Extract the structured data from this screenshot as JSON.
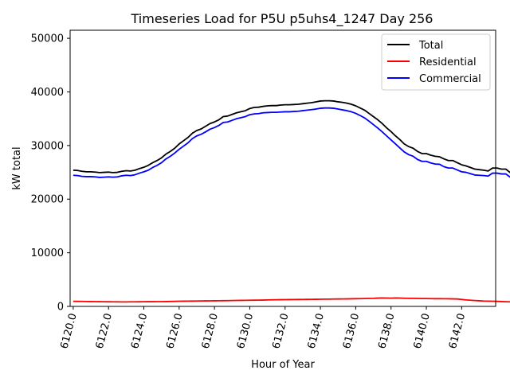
{
  "chart_data": {
    "type": "line",
    "title": "Timeseries Load for P5U p5uhs4_1247  Day 256",
    "xlabel": "Hour of Year",
    "ylabel": "kW total",
    "xlim": [
      6119.825,
      6143.925
    ],
    "ylim": [
      0,
      51500
    ],
    "xticks": [
      6120,
      6122,
      6124,
      6126,
      6128,
      6130,
      6132,
      6134,
      6136,
      6138,
      6140,
      6142
    ],
    "xtick_labels": [
      "6120.0",
      "6122.0",
      "6124.0",
      "6126.0",
      "6128.0",
      "6130.0",
      "6132.0",
      "6134.0",
      "6136.0",
      "6138.0",
      "6140.0",
      "6142.0"
    ],
    "yticks": [
      0,
      10000,
      20000,
      30000,
      40000,
      50000
    ],
    "ytick_labels": [
      "0",
      "10000",
      "20000",
      "30000",
      "40000",
      "50000"
    ],
    "legend_position": "top-right",
    "x_start": 6120.0,
    "x_step": 0.25,
    "series": [
      {
        "name": "Total",
        "color": "#000000",
        "values": [
          25400,
          25350,
          25200,
          25100,
          25100,
          25050,
          24950,
          25000,
          25050,
          24950,
          25000,
          25200,
          25300,
          25250,
          25400,
          25700,
          25950,
          26300,
          26800,
          27200,
          27700,
          28400,
          28900,
          29500,
          30300,
          30900,
          31500,
          32300,
          32800,
          33100,
          33600,
          34100,
          34400,
          34800,
          35400,
          35500,
          35800,
          36100,
          36300,
          36500,
          36900,
          37100,
          37150,
          37300,
          37400,
          37450,
          37450,
          37550,
          37600,
          37600,
          37650,
          37700,
          37800,
          37900,
          38000,
          38150,
          38300,
          38350,
          38350,
          38300,
          38150,
          38050,
          37900,
          37700,
          37400,
          37000,
          36600,
          36000,
          35400,
          34800,
          34100,
          33300,
          32600,
          31800,
          31100,
          30300,
          29800,
          29500,
          28900,
          28500,
          28500,
          28200,
          28000,
          27900,
          27500,
          27200,
          27200,
          26800,
          26400,
          26200,
          25900,
          25600,
          25500,
          25400,
          25250,
          25800,
          25800,
          25600,
          25600,
          24950,
          24300
        ]
      },
      {
        "name": "Residential",
        "color": "#ff0000",
        "values": [
          950,
          940,
          930,
          910,
          900,
          890,
          880,
          870,
          860,
          850,
          850,
          840,
          840,
          850,
          850,
          860,
          870,
          880,
          880,
          890,
          890,
          900,
          920,
          940,
          960,
          970,
          980,
          990,
          1000,
          1020,
          1030,
          1040,
          1050,
          1060,
          1070,
          1080,
          1100,
          1110,
          1120,
          1130,
          1150,
          1160,
          1170,
          1180,
          1200,
          1220,
          1240,
          1250,
          1260,
          1270,
          1280,
          1290,
          1300,
          1310,
          1320,
          1330,
          1340,
          1350,
          1360,
          1370,
          1380,
          1390,
          1400,
          1420,
          1440,
          1450,
          1460,
          1480,
          1500,
          1550,
          1580,
          1560,
          1540,
          1580,
          1560,
          1520,
          1500,
          1500,
          1480,
          1470,
          1460,
          1450,
          1440,
          1440,
          1430,
          1420,
          1400,
          1380,
          1300,
          1200,
          1150,
          1100,
          1050,
          1000,
          980,
          960,
          940,
          900,
          870,
          850,
          830
        ]
      },
      {
        "name": "Commercial",
        "color": "#0000ff",
        "values": [
          24450,
          24400,
          24250,
          24200,
          24200,
          24150,
          24050,
          24100,
          24150,
          24100,
          24150,
          24350,
          24450,
          24400,
          24550,
          24850,
          25100,
          25400,
          25900,
          26300,
          26800,
          27500,
          28000,
          28600,
          29300,
          29900,
          30500,
          31300,
          31800,
          32100,
          32550,
          33050,
          33350,
          33750,
          34300,
          34400,
          34700,
          35000,
          35200,
          35400,
          35750,
          35900,
          35950,
          36100,
          36150,
          36200,
          36200,
          36250,
          36300,
          36300,
          36350,
          36400,
          36500,
          36600,
          36700,
          36800,
          36950,
          37000,
          37000,
          36950,
          36800,
          36650,
          36500,
          36300,
          36000,
          35600,
          35150,
          34550,
          33900,
          33250,
          32550,
          31800,
          31050,
          30300,
          29550,
          28800,
          28300,
          28000,
          27400,
          27050,
          27050,
          26750,
          26550,
          26500,
          26050,
          25800,
          25800,
          25450,
          25100,
          25000,
          24750,
          24500,
          24450,
          24400,
          24300,
          24850,
          24850,
          24700,
          24700,
          24100,
          23500
        ]
      }
    ]
  }
}
